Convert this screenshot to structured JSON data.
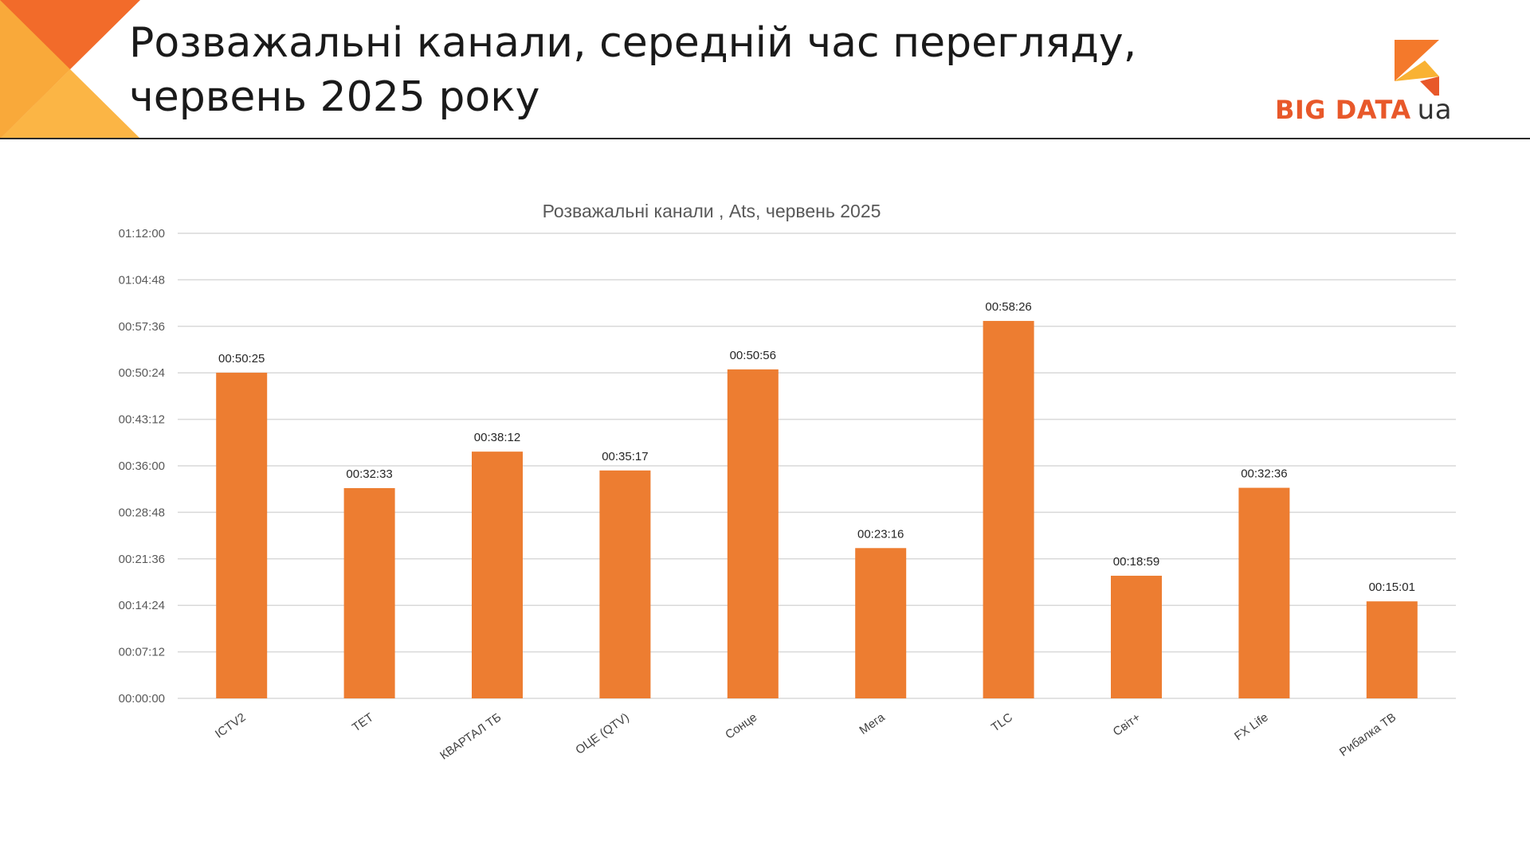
{
  "header": {
    "title_line1": "Розважальні канали, середній час перегляду,",
    "title_line2": "червень 2025 року"
  },
  "logo": {
    "text": "BIG DATA",
    "suffix": "ua",
    "colors": {
      "orange": "#F4792B",
      "red": "#E8582A",
      "gold": "#F9B233"
    }
  },
  "colors": {
    "bar": "#ED7D31",
    "grid": "#D9D9D9",
    "corner_dark": "#F26B2A",
    "corner_light": "#F9A93A"
  },
  "chart_data": {
    "type": "bar",
    "title": "Розважальні канали , Ats, червень 2025",
    "categories": [
      "ICTV2",
      "ТЕТ",
      "КВАРТАЛ ТБ",
      "ОЦЕ (QTV)",
      "Сонце",
      "Мега",
      "TLC",
      "Світ+",
      "FX Life",
      "Рибалка ТВ"
    ],
    "values": [
      3025,
      1953,
      2292,
      2117,
      3056,
      1396,
      3506,
      1139,
      1956,
      901
    ],
    "data_labels": [
      "00:50:25",
      "00:32:33",
      "00:38:12",
      "00:35:17",
      "00:50:56",
      "00:23:16",
      "00:58:26",
      "00:18:59",
      "00:32:36",
      "00:15:01"
    ],
    "value_unit": "seconds",
    "ylim": [
      0,
      4320
    ],
    "yticks": [
      0,
      432,
      864,
      1296,
      1728,
      2160,
      2592,
      3024,
      3456,
      3888,
      4320
    ],
    "ytick_labels": [
      "00:00:00",
      "00:07:12",
      "00:14:24",
      "00:21:36",
      "00:28:48",
      "00:36:00",
      "00:43:12",
      "00:50:24",
      "00:57:36",
      "01:04:48",
      "01:12:00"
    ],
    "grid": true,
    "legend": "none"
  }
}
